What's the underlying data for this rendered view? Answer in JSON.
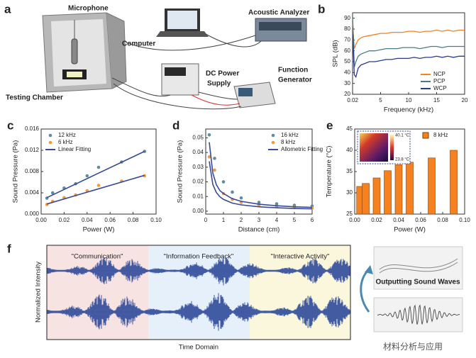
{
  "panel_a": {
    "label": "a",
    "microphone": "Microphone",
    "computer": "Computer",
    "acoustic_analyzer": "Acoustic Analyzer",
    "dc_power_supply": [
      "DC Power",
      "Supply"
    ],
    "function_generator": [
      "Function",
      "Generator"
    ],
    "testing_chamber": "Testing Chamber"
  },
  "chart_data": [
    {
      "panel": "b",
      "type": "line",
      "xlabel": "Frequency (kHz)",
      "ylabel": "SPL (dB)",
      "xlim": [
        0,
        20
      ],
      "ylim": [
        20,
        95
      ],
      "xticks": [
        0.02,
        5,
        10,
        15,
        20
      ],
      "yticks": [
        20,
        30,
        40,
        50,
        60,
        70,
        80,
        90
      ],
      "legend": "lower-right",
      "x": [
        0.02,
        0.3,
        0.6,
        1,
        1.5,
        2,
        3,
        4,
        5,
        6,
        7,
        8,
        9,
        10,
        11,
        12,
        13,
        14,
        15,
        16,
        17,
        18,
        19,
        20
      ],
      "series": [
        {
          "name": "NCP",
          "color": "#f5821f",
          "values": [
            85,
            62,
            66,
            70,
            72,
            73,
            74,
            75,
            76,
            76,
            77,
            77,
            77,
            78,
            78,
            77,
            78,
            78,
            79,
            78,
            79,
            78,
            79,
            79
          ]
        },
        {
          "name": "PCP",
          "color": "#4a7a8c",
          "values": [
            90,
            45,
            50,
            55,
            57,
            58,
            60,
            60,
            61,
            62,
            62,
            62,
            63,
            63,
            63,
            62,
            63,
            64,
            64,
            63,
            64,
            64,
            64,
            64
          ]
        },
        {
          "name": "WCP",
          "color": "#2b3a8f",
          "values": [
            75,
            38,
            36,
            44,
            47,
            48,
            50,
            50,
            51,
            52,
            52,
            53,
            53,
            53,
            54,
            53,
            54,
            54,
            55,
            54,
            55,
            54,
            55,
            55
          ]
        }
      ]
    },
    {
      "panel": "c",
      "type": "scatter",
      "xlabel": "Power (W)",
      "ylabel": "Sound Pressure (Pa)",
      "xlim": [
        0,
        0.1
      ],
      "ylim": [
        0,
        0.016
      ],
      "xticks": [
        {
          "value": 0,
          "label": "0.00"
        },
        0.02,
        0.04,
        0.06,
        0.08,
        {
          "value": 0.1,
          "label": "0.10"
        }
      ],
      "yticks": [
        {
          "value": 0,
          "label": "0.000"
        },
        0.004,
        0.008,
        0.012,
        0.016
      ],
      "legend": "upper-left",
      "series": [
        {
          "name": "12 kHz",
          "color": "#5f8ca0",
          "x": [
            0.005,
            0.01,
            0.02,
            0.03,
            0.04,
            0.05,
            0.07,
            0.09
          ],
          "values": [
            0.003,
            0.004,
            0.0049,
            0.0057,
            0.0072,
            0.0088,
            0.0098,
            0.0118
          ]
        },
        {
          "name": "6 kHz",
          "color": "#f39a3c",
          "x": [
            0.005,
            0.01,
            0.02,
            0.03,
            0.04,
            0.05,
            0.07,
            0.09
          ],
          "values": [
            0.0018,
            0.0024,
            0.0031,
            0.0036,
            0.0044,
            0.0054,
            0.0062,
            0.0072
          ]
        },
        {
          "name": "Linear Fitting",
          "color": "#3a4a9a",
          "fit": true,
          "x": [
            0.005,
            0.09,
            null,
            0.005,
            0.09
          ],
          "values": [
            0.0031,
            0.0118,
            null,
            0.0019,
            0.0073
          ]
        }
      ]
    },
    {
      "panel": "d",
      "type": "scatter",
      "xlabel": "Distance (cm)",
      "ylabel": "Sound Pressure (Pa)",
      "xlim": [
        0,
        6
      ],
      "ylim": [
        -0.002,
        0.056
      ],
      "xticks": [
        0,
        1,
        2,
        3,
        4,
        5,
        6
      ],
      "yticks": [
        {
          "value": 0,
          "label": "0.00"
        },
        0.01,
        0.02,
        0.03,
        0.04,
        0.05
      ],
      "legend": "upper-right",
      "series": [
        {
          "name": "16 kHz",
          "color": "#5f8ca0",
          "x": [
            0.2,
            0.5,
            1,
            1.5,
            2,
            3,
            4,
            5,
            6
          ],
          "values": [
            0.052,
            0.036,
            0.02,
            0.013,
            0.009,
            0.006,
            0.005,
            0.004,
            0.0035
          ]
        },
        {
          "name": "8 kHz",
          "color": "#f39a3c",
          "x": [
            0.2,
            0.5,
            1,
            1.5,
            2,
            3,
            4,
            5,
            6
          ],
          "values": [
            0.037,
            0.028,
            0.012,
            0.008,
            0.006,
            0.004,
            0.003,
            0.0025,
            0.002
          ]
        },
        {
          "name": "Allometric Fitting",
          "color": "#3a4a9a",
          "fit": true,
          "x": [
            0.2,
            0.4,
            0.6,
            0.8,
            1,
            1.5,
            2,
            3,
            4,
            5,
            6,
            null,
            0.2,
            0.4,
            0.6,
            0.8,
            1,
            1.5,
            2,
            3,
            4,
            5,
            6
          ],
          "values": [
            0.047,
            0.026,
            0.018,
            0.014,
            0.012,
            0.0085,
            0.0067,
            0.0047,
            0.0037,
            0.003,
            0.0026,
            null,
            0.034,
            0.0182,
            0.0127,
            0.0098,
            0.008,
            0.0055,
            0.0043,
            0.003,
            0.0023,
            0.0018,
            0.0016
          ]
        }
      ]
    },
    {
      "panel": "e",
      "type": "bar",
      "xlabel": "Power (W)",
      "ylabel": "Temperature (°C)",
      "xlim": [
        0,
        0.1
      ],
      "ylim": [
        25,
        45
      ],
      "xticks": [
        {
          "value": 0,
          "label": "0.00"
        },
        0.02,
        0.04,
        0.06,
        0.08,
        {
          "value": 0.1,
          "label": "0.10"
        }
      ],
      "yticks": [
        25,
        30,
        35,
        40,
        45
      ],
      "legend": "upper-right",
      "series": [
        {
          "name": "8 kHz",
          "color": "#f5821f",
          "x": [
            0.005,
            0.01,
            0.02,
            0.03,
            0.04,
            0.05,
            0.07,
            0.09
          ],
          "values": [
            31.5,
            32.2,
            33.5,
            35.2,
            36.6,
            37.2,
            38.2,
            40
          ]
        }
      ],
      "inset_labels": [
        "40.1 °C",
        "23.8 °C"
      ]
    }
  ],
  "panel_f": {
    "label": "f",
    "regions": [
      "\"Communication\"",
      "\"Information Feedback\"",
      "\"Interactive Activity\""
    ],
    "y_label": "Normalized Intensity",
    "x_label": "Time Domain",
    "output_label": "Outputting Sound Waves"
  },
  "watermark": "材料分析与应用"
}
